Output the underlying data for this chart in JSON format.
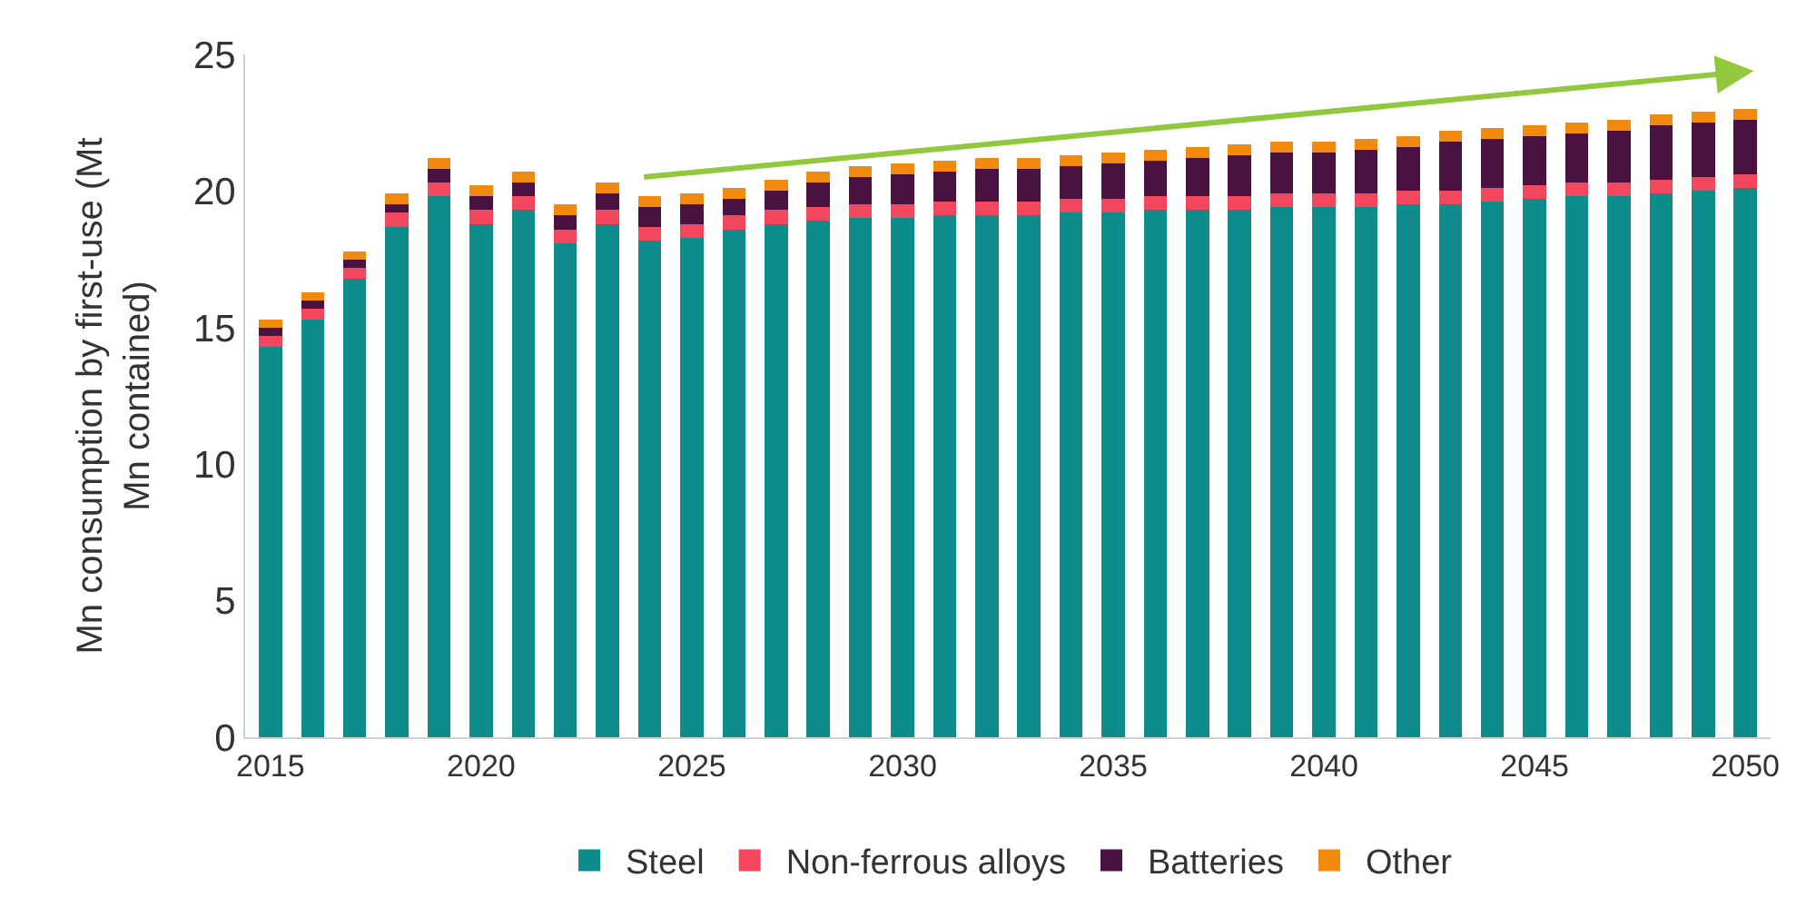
{
  "chart_data": {
    "type": "bar",
    "stacked": true,
    "ylabel": "Mn consumption by first-use (Mt Mn contained)",
    "x": [
      2015,
      2016,
      2017,
      2018,
      2019,
      2020,
      2021,
      2022,
      2023,
      2024,
      2025,
      2026,
      2027,
      2028,
      2029,
      2030,
      2031,
      2032,
      2033,
      2034,
      2035,
      2036,
      2037,
      2038,
      2039,
      2040,
      2041,
      2042,
      2043,
      2044,
      2045,
      2046,
      2047,
      2048,
      2049,
      2050
    ],
    "xlim": [
      2014.4,
      2050.6
    ],
    "xticks": [
      2015,
      2020,
      2025,
      2030,
      2035,
      2040,
      2045,
      2050
    ],
    "ylim": [
      0,
      25
    ],
    "yticks": [
      0,
      5,
      10,
      15,
      20,
      25
    ],
    "grid": false,
    "legend": "bottom",
    "series": [
      {
        "name": "Steel",
        "color": "#0e8c8c",
        "values": [
          14.3,
          15.3,
          16.8,
          18.7,
          19.8,
          18.8,
          19.3,
          18.1,
          18.8,
          18.2,
          18.3,
          18.6,
          18.8,
          18.9,
          19.0,
          19.0,
          19.1,
          19.1,
          19.1,
          19.2,
          19.2,
          19.3,
          19.3,
          19.3,
          19.4,
          19.4,
          19.4,
          19.5,
          19.5,
          19.6,
          19.7,
          19.8,
          19.8,
          19.9,
          20.0,
          20.1
        ]
      },
      {
        "name": "Non-ferrous alloys",
        "color": "#f2475c",
        "values": [
          0.4,
          0.4,
          0.4,
          0.5,
          0.5,
          0.5,
          0.5,
          0.5,
          0.5,
          0.5,
          0.5,
          0.5,
          0.5,
          0.5,
          0.5,
          0.5,
          0.5,
          0.5,
          0.5,
          0.5,
          0.5,
          0.5,
          0.5,
          0.5,
          0.5,
          0.5,
          0.5,
          0.5,
          0.5,
          0.5,
          0.5,
          0.5,
          0.5,
          0.5,
          0.5,
          0.5
        ]
      },
      {
        "name": "Batteries",
        "color": "#4a1240",
        "values": [
          0.3,
          0.3,
          0.3,
          0.3,
          0.5,
          0.5,
          0.5,
          0.5,
          0.6,
          0.7,
          0.7,
          0.6,
          0.7,
          0.9,
          1.0,
          1.1,
          1.1,
          1.2,
          1.2,
          1.2,
          1.3,
          1.3,
          1.4,
          1.5,
          1.5,
          1.5,
          1.6,
          1.6,
          1.8,
          1.8,
          1.8,
          1.8,
          1.9,
          2.0,
          2.0,
          2.0
        ]
      },
      {
        "name": "Other",
        "color": "#f28a0f",
        "values": [
          0.3,
          0.3,
          0.3,
          0.4,
          0.4,
          0.4,
          0.4,
          0.4,
          0.4,
          0.4,
          0.4,
          0.4,
          0.4,
          0.4,
          0.4,
          0.4,
          0.4,
          0.4,
          0.4,
          0.4,
          0.4,
          0.4,
          0.4,
          0.4,
          0.4,
          0.4,
          0.4,
          0.4,
          0.4,
          0.4,
          0.4,
          0.4,
          0.4,
          0.4,
          0.4,
          0.4
        ]
      }
    ]
  }
}
